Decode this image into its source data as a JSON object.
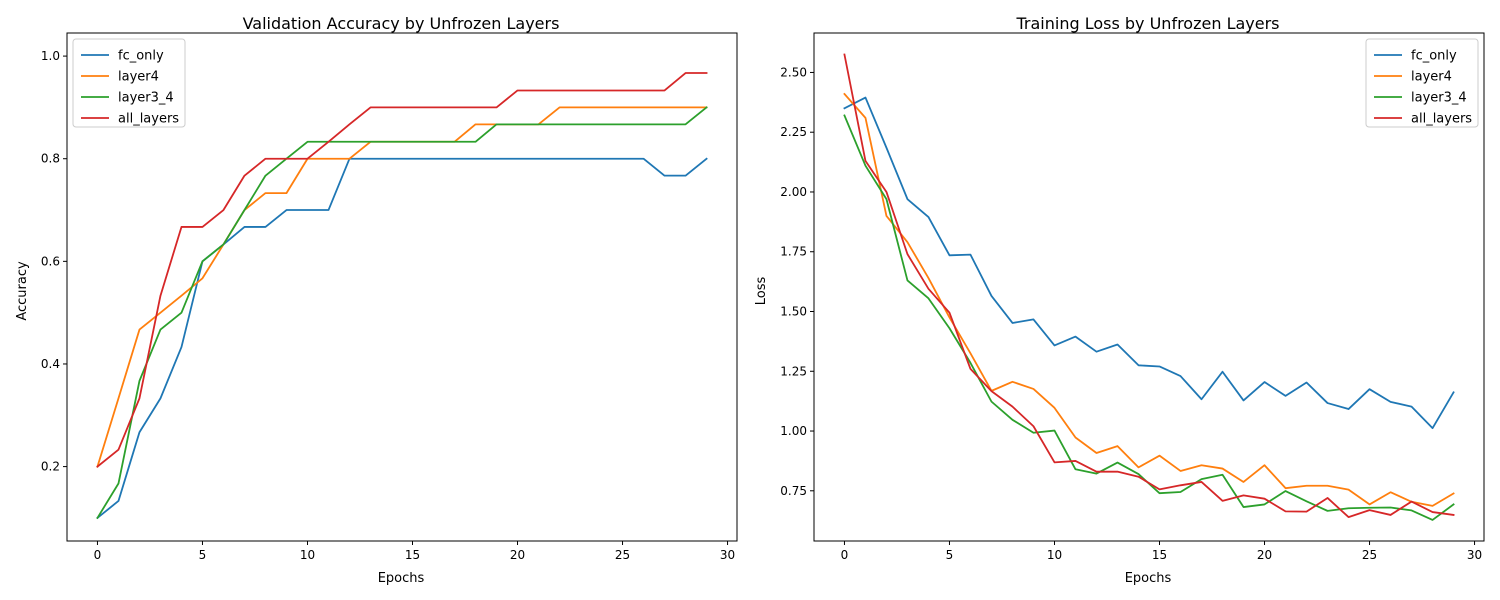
{
  "chart_data": [
    {
      "type": "line",
      "title": "Validation Accuracy by Unfrozen Layers",
      "xlabel": "Epochs",
      "ylabel": "Accuracy",
      "xlim": [
        -1.45,
        30.45
      ],
      "ylim": [
        0.055,
        1.045
      ],
      "xticks": [
        0,
        5,
        10,
        15,
        20,
        25,
        30
      ],
      "xtick_labels": [
        "0",
        "5",
        "10",
        "15",
        "20",
        "25",
        "30"
      ],
      "yticks": [
        0.2,
        0.4,
        0.6,
        0.8,
        1.0
      ],
      "ytick_labels": [
        "0.2",
        "0.4",
        "0.6",
        "0.8",
        "1.0"
      ],
      "grid": false,
      "legend_position": "upper-left",
      "x": [
        0,
        1,
        2,
        3,
        4,
        5,
        6,
        7,
        8,
        9,
        10,
        11,
        12,
        13,
        14,
        15,
        16,
        17,
        18,
        19,
        20,
        21,
        22,
        23,
        24,
        25,
        26,
        27,
        28,
        29
      ],
      "series": [
        {
          "name": "fc_only",
          "color": "#1f77b4",
          "values": [
            0.1,
            0.133,
            0.267,
            0.333,
            0.433,
            0.6,
            0.633,
            0.667,
            0.667,
            0.7,
            0.7,
            0.7,
            0.8,
            0.8,
            0.8,
            0.8,
            0.8,
            0.8,
            0.8,
            0.8,
            0.8,
            0.8,
            0.8,
            0.8,
            0.8,
            0.8,
            0.8,
            0.767,
            0.767,
            0.8
          ]
        },
        {
          "name": "layer4",
          "color": "#ff7f0e",
          "values": [
            0.2,
            0.333,
            0.467,
            0.5,
            0.533,
            0.567,
            0.633,
            0.7,
            0.733,
            0.733,
            0.8,
            0.8,
            0.8,
            0.833,
            0.833,
            0.833,
            0.833,
            0.833,
            0.867,
            0.867,
            0.867,
            0.867,
            0.9,
            0.9,
            0.9,
            0.9,
            0.9,
            0.9,
            0.9,
            0.9
          ]
        },
        {
          "name": "layer3_4",
          "color": "#2ca02c",
          "values": [
            0.1,
            0.167,
            0.367,
            0.467,
            0.5,
            0.6,
            0.633,
            0.7,
            0.767,
            0.8,
            0.833,
            0.833,
            0.833,
            0.833,
            0.833,
            0.833,
            0.833,
            0.833,
            0.833,
            0.867,
            0.867,
            0.867,
            0.867,
            0.867,
            0.867,
            0.867,
            0.867,
            0.867,
            0.867,
            0.9
          ]
        },
        {
          "name": "all_layers",
          "color": "#d62728",
          "values": [
            0.2,
            0.233,
            0.333,
            0.533,
            0.667,
            0.667,
            0.7,
            0.767,
            0.8,
            0.8,
            0.8,
            0.833,
            0.867,
            0.9,
            0.9,
            0.9,
            0.9,
            0.9,
            0.9,
            0.9,
            0.933,
            0.933,
            0.933,
            0.933,
            0.933,
            0.933,
            0.933,
            0.933,
            0.967,
            0.967
          ]
        }
      ]
    },
    {
      "type": "line",
      "title": "Training Loss by Unfrozen Layers",
      "xlabel": "Epochs",
      "ylabel": "Loss",
      "xlim": [
        -1.45,
        30.45
      ],
      "ylim": [
        0.54,
        2.665
      ],
      "xticks": [
        0,
        5,
        10,
        15,
        20,
        25,
        30
      ],
      "xtick_labels": [
        "0",
        "5",
        "10",
        "15",
        "20",
        "25",
        "30"
      ],
      "yticks": [
        0.75,
        1.0,
        1.25,
        1.5,
        1.75,
        2.0,
        2.25,
        2.5
      ],
      "ytick_labels": [
        "0.75",
        "1.00",
        "1.25",
        "1.50",
        "1.75",
        "2.00",
        "2.25",
        "2.50"
      ],
      "grid": false,
      "legend_position": "upper-right",
      "x": [
        0,
        1,
        2,
        3,
        4,
        5,
        6,
        7,
        8,
        9,
        10,
        11,
        12,
        13,
        14,
        15,
        16,
        17,
        18,
        19,
        20,
        21,
        22,
        23,
        24,
        25,
        26,
        27,
        28,
        29
      ],
      "series": [
        {
          "name": "fc_only",
          "color": "#1f77b4",
          "values": [
            2.35,
            2.395,
            2.185,
            1.97,
            1.895,
            1.735,
            1.738,
            1.565,
            1.452,
            1.467,
            1.358,
            1.395,
            1.332,
            1.362,
            1.275,
            1.27,
            1.23,
            1.133,
            1.248,
            1.128,
            1.205,
            1.147,
            1.203,
            1.117,
            1.092,
            1.175,
            1.122,
            1.102,
            1.012,
            1.162
          ]
        },
        {
          "name": "layer4",
          "color": "#ff7f0e",
          "values": [
            2.41,
            2.31,
            1.9,
            1.79,
            1.64,
            1.475,
            1.325,
            1.168,
            1.206,
            1.176,
            1.097,
            0.973,
            0.908,
            0.937,
            0.848,
            0.897,
            0.833,
            0.857,
            0.843,
            0.787,
            0.857,
            0.761,
            0.771,
            0.771,
            0.755,
            0.693,
            0.744,
            0.704,
            0.687,
            0.739
          ]
        },
        {
          "name": "layer3_4",
          "color": "#2ca02c",
          "values": [
            2.32,
            2.11,
            1.97,
            1.63,
            1.555,
            1.43,
            1.285,
            1.123,
            1.047,
            0.993,
            1.002,
            0.84,
            0.822,
            0.868,
            0.82,
            0.74,
            0.745,
            0.799,
            0.817,
            0.682,
            0.693,
            0.749,
            0.706,
            0.666,
            0.677,
            0.679,
            0.68,
            0.668,
            0.628,
            0.693
          ]
        },
        {
          "name": "all_layers",
          "color": "#d62728",
          "values": [
            2.575,
            2.13,
            2.0,
            1.74,
            1.595,
            1.495,
            1.26,
            1.167,
            1.102,
            1.02,
            0.869,
            0.875,
            0.83,
            0.83,
            0.809,
            0.756,
            0.773,
            0.787,
            0.708,
            0.731,
            0.717,
            0.664,
            0.663,
            0.72,
            0.64,
            0.669,
            0.649,
            0.705,
            0.661,
            0.649
          ]
        }
      ]
    }
  ]
}
